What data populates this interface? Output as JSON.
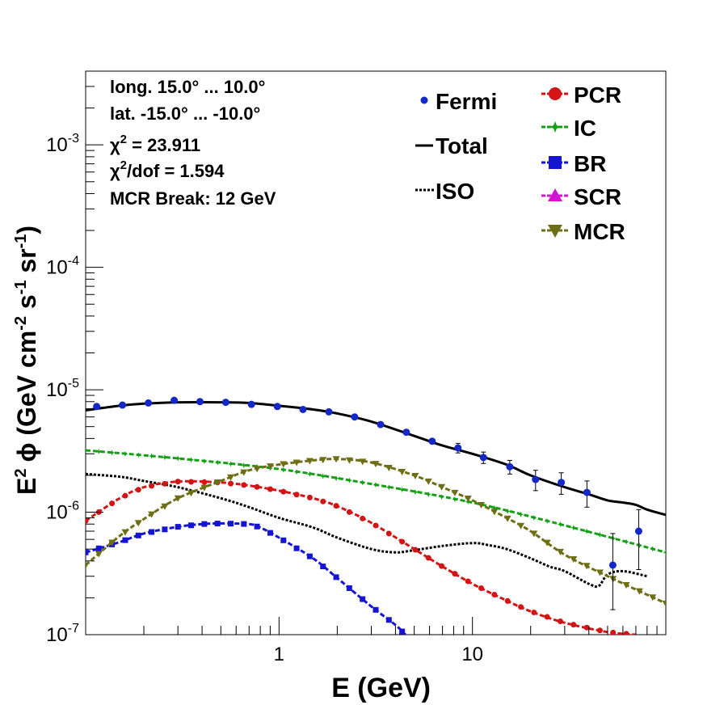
{
  "chart_data": {
    "type": "line",
    "xscale": "log",
    "yscale": "log",
    "xlim": [
      0.1,
      100
    ],
    "ylim": [
      1e-07,
      0.004
    ],
    "xlabel": "E (GeV)",
    "ylabel": {
      "main": "E",
      "sup2": "2",
      "phi": "ϕ (GeV cm",
      "sup_m2": "-2",
      "s": " s",
      "sup_m1a": "-1",
      "sr": " sr",
      "sup_m1b": "-1",
      "close": ")"
    },
    "xticks": [
      {
        "value": 1,
        "label": "1"
      },
      {
        "value": 10,
        "label": "10"
      }
    ],
    "yticks": [
      {
        "value": 1e-07,
        "base": "10",
        "exp": "-7"
      },
      {
        "value": 1e-06,
        "base": "10",
        "exp": "-6"
      },
      {
        "value": 1e-05,
        "base": "10",
        "exp": "-5"
      },
      {
        "value": 0.0001,
        "base": "10",
        "exp": "-4"
      },
      {
        "value": 0.001,
        "base": "10",
        "exp": "-3"
      }
    ],
    "annotations": {
      "longitude": "long. 15.0° ... 10.0°",
      "latitude": "lat. -15.0° ... -10.0°",
      "chi2": {
        "symbol": "χ",
        "sup": "2",
        "rest": " = 23.911"
      },
      "chi2dof": {
        "symbol": "χ",
        "sup": "2",
        "rest": "/dof = 1.594"
      },
      "mcr_break": "MCR Break: 12 GeV"
    },
    "legend_left": [
      {
        "name": "Fermi",
        "style": "points",
        "color": "#1428c8"
      },
      {
        "name": "Total",
        "style": "solid",
        "color": "#000000"
      },
      {
        "name": "ISO",
        "style": "dotted",
        "color": "#000000"
      }
    ],
    "legend_right": [
      {
        "name": "PCR",
        "marker": "circle",
        "color": "#d21414"
      },
      {
        "name": "IC",
        "marker": "star",
        "color": "#14a014"
      },
      {
        "name": "BR",
        "marker": "square",
        "color": "#1414d2"
      },
      {
        "name": "SCR",
        "marker": "triangle-up",
        "color": "#d214d2"
      },
      {
        "name": "MCR",
        "marker": "triangle-down",
        "color": "#6e6e14"
      }
    ],
    "fermi": {
      "x": [
        0.114,
        0.155,
        0.211,
        0.287,
        0.39,
        0.53,
        0.72,
        0.98,
        1.33,
        1.81,
        2.46,
        3.35,
        4.55,
        6.19,
        8.42,
        11.4,
        15.6,
        21.2,
        28.8,
        39.1,
        53.2,
        72.4
      ],
      "y": [
        7.3e-06,
        7.5e-06,
        7.8e-06,
        8.2e-06,
        8e-06,
        7.9e-06,
        7.6e-06,
        7.3e-06,
        6.9e-06,
        6.6e-06,
        6e-06,
        5.2e-06,
        4.5e-06,
        3.8e-06,
        3.35e-06,
        2.8e-06,
        2.35e-06,
        1.85e-06,
        1.75e-06,
        1.45e-06,
        3.7e-07,
        7e-07
      ],
      "err_lo": [
        0,
        0,
        0,
        0,
        0,
        0,
        0,
        0,
        0,
        0,
        0,
        0,
        0,
        0,
        3e-07,
        3e-07,
        3e-07,
        3.5e-07,
        3.5e-07,
        3.5e-07,
        2.1e-07,
        3.6e-07
      ],
      "err_hi": [
        0,
        0,
        0,
        0,
        0,
        0,
        0,
        0,
        0,
        0,
        0,
        0,
        0,
        0,
        3e-07,
        3e-07,
        3e-07,
        3.5e-07,
        3.5e-07,
        3.5e-07,
        3e-07,
        3.5e-07
      ]
    },
    "series": [
      {
        "name": "Total",
        "style": "solid",
        "color": "#000000",
        "width": 3,
        "marker": "none",
        "x": [
          0.1,
          0.15,
          0.2,
          0.3,
          0.5,
          0.7,
          1.0,
          1.5,
          2.0,
          3.0,
          5.0,
          7.0,
          10,
          15,
          20,
          30,
          40,
          50,
          60,
          70,
          80,
          100
        ],
        "y": [
          6.8e-06,
          7.4e-06,
          7.7e-06,
          7.9e-06,
          7.9e-06,
          7.8e-06,
          7.4e-06,
          6.9e-06,
          6.4e-06,
          5.5e-06,
          4.2e-06,
          3.5e-06,
          3e-06,
          2.45e-06,
          2e-06,
          1.6e-06,
          1.4e-06,
          1.25e-06,
          1.2e-06,
          1.15e-06,
          1.05e-06,
          9.5e-07
        ]
      },
      {
        "name": "ISO",
        "style": "dotted",
        "color": "#000000",
        "width": 3,
        "marker": "none",
        "x": [
          0.1,
          0.15,
          0.2,
          0.3,
          0.5,
          0.7,
          1.0,
          1.5,
          2.0,
          3.0,
          4.0,
          5.0,
          7.0,
          10,
          12,
          15,
          20,
          25,
          30,
          40,
          45,
          50,
          60,
          80
        ],
        "y": [
          2.05e-06,
          1.95e-06,
          1.8e-06,
          1.6e-06,
          1.3e-06,
          1.1e-06,
          9e-07,
          7.5e-07,
          6.2e-07,
          5e-07,
          4.7e-07,
          4.9e-07,
          5.3e-07,
          5.6e-07,
          5.4e-07,
          5e-07,
          4.2e-07,
          3.6e-07,
          3.3e-07,
          2.6e-07,
          2.5e-07,
          3.1e-07,
          3.3e-07,
          3e-07
        ]
      },
      {
        "name": "IC",
        "style": "dashed",
        "color": "#14a014",
        "width": 3,
        "marker": "star",
        "x": [
          0.1,
          0.3,
          1.0,
          3.0,
          10,
          30,
          100
        ],
        "y": [
          3.2e-06,
          2.75e-06,
          2.25e-06,
          1.7e-06,
          1.2e-06,
          7.8e-07,
          4.7e-07
        ]
      },
      {
        "name": "PCR",
        "style": "dashed",
        "color": "#d21414",
        "width": 3,
        "marker": "circle",
        "x": [
          0.1,
          0.15,
          0.2,
          0.3,
          0.5,
          0.7,
          1.0,
          1.5,
          2.0,
          3.0,
          5.0,
          7.0,
          10,
          15,
          20,
          30,
          50,
          70
        ],
        "y": [
          8.5e-07,
          1.3e-06,
          1.6e-06,
          1.78e-06,
          1.75e-06,
          1.65e-06,
          1.5e-06,
          1.3e-06,
          1.12e-06,
          8.2e-07,
          5e-07,
          3.6e-07,
          2.6e-07,
          1.9e-07,
          1.55e-07,
          1.25e-07,
          1.05e-07,
          1e-07
        ]
      },
      {
        "name": "BR",
        "style": "dashed",
        "color": "#1414d2",
        "width": 3,
        "marker": "square",
        "x": [
          0.1,
          0.15,
          0.2,
          0.3,
          0.4,
          0.5,
          0.7,
          0.8,
          1.0,
          1.5,
          2.0,
          3.0,
          4.0,
          4.5
        ],
        "y": [
          4.7e-07,
          5.7e-07,
          6.7e-07,
          7.6e-07,
          8e-07,
          8.1e-07,
          8e-07,
          7.5e-07,
          6.2e-07,
          4.2e-07,
          2.9e-07,
          1.7e-07,
          1.2e-07,
          1e-07
        ]
      },
      {
        "name": "MCR",
        "style": "dashed",
        "color": "#6e6e14",
        "width": 3,
        "marker": "triangle-down",
        "x": [
          0.1,
          0.15,
          0.2,
          0.3,
          0.5,
          0.7,
          1.0,
          1.5,
          2.0,
          3.0,
          5.0,
          7.0,
          10,
          15,
          20,
          30,
          50,
          100
        ],
        "y": [
          3.7e-07,
          6.4e-07,
          8.8e-07,
          1.3e-06,
          1.8e-06,
          2.2e-06,
          2.45e-06,
          2.65e-06,
          2.72e-06,
          2.55e-06,
          2e-06,
          1.6e-06,
          1.25e-06,
          9e-07,
          7e-07,
          4.5e-07,
          3e-07,
          1.8e-07
        ]
      }
    ]
  }
}
